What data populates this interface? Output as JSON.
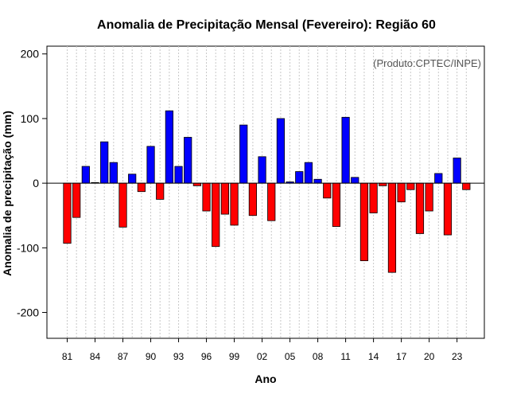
{
  "chart_data": {
    "type": "bar",
    "title": "Anomalia de Precipitação Mensal (Fevereiro): Região 60",
    "xlabel": "Ano",
    "ylabel": "Anomalia de precipitação (mm)",
    "credit": "(Produto:CPTEC/INPE)",
    "ylim": [
      -240,
      212
    ],
    "yticks": [
      -200,
      -100,
      0,
      100,
      200
    ],
    "xtick_labels": [
      "81",
      "84",
      "87",
      "90",
      "93",
      "96",
      "99",
      "02",
      "05",
      "08",
      "11",
      "14",
      "17",
      "20",
      "23"
    ],
    "xtick_every": 3,
    "years": [
      1981,
      1982,
      1983,
      1984,
      1985,
      1986,
      1987,
      1988,
      1989,
      1990,
      1991,
      1992,
      1993,
      1994,
      1995,
      1996,
      1997,
      1998,
      1999,
      2000,
      2001,
      2002,
      2003,
      2004,
      2005,
      2006,
      2007,
      2008,
      2009,
      2010,
      2011,
      2012,
      2013,
      2014,
      2015,
      2016,
      2017,
      2018,
      2019,
      2020,
      2021,
      2022,
      2023,
      2024
    ],
    "values": [
      -93,
      -53,
      26,
      1,
      64,
      32,
      -68,
      14,
      -13,
      57,
      -25,
      112,
      26,
      71,
      -4,
      -43,
      -98,
      -48,
      -65,
      90,
      -50,
      41,
      -58,
      100,
      2,
      18,
      32,
      6,
      -23,
      -67,
      102,
      9,
      -120,
      -46,
      -4,
      -138,
      -29,
      -10,
      -78,
      -43,
      15,
      -80,
      39,
      -10
    ],
    "colors": {
      "positive": "#0000ff",
      "negative": "#ff0000",
      "zero_line": "#000000",
      "grid": "#c8c8c8"
    }
  }
}
